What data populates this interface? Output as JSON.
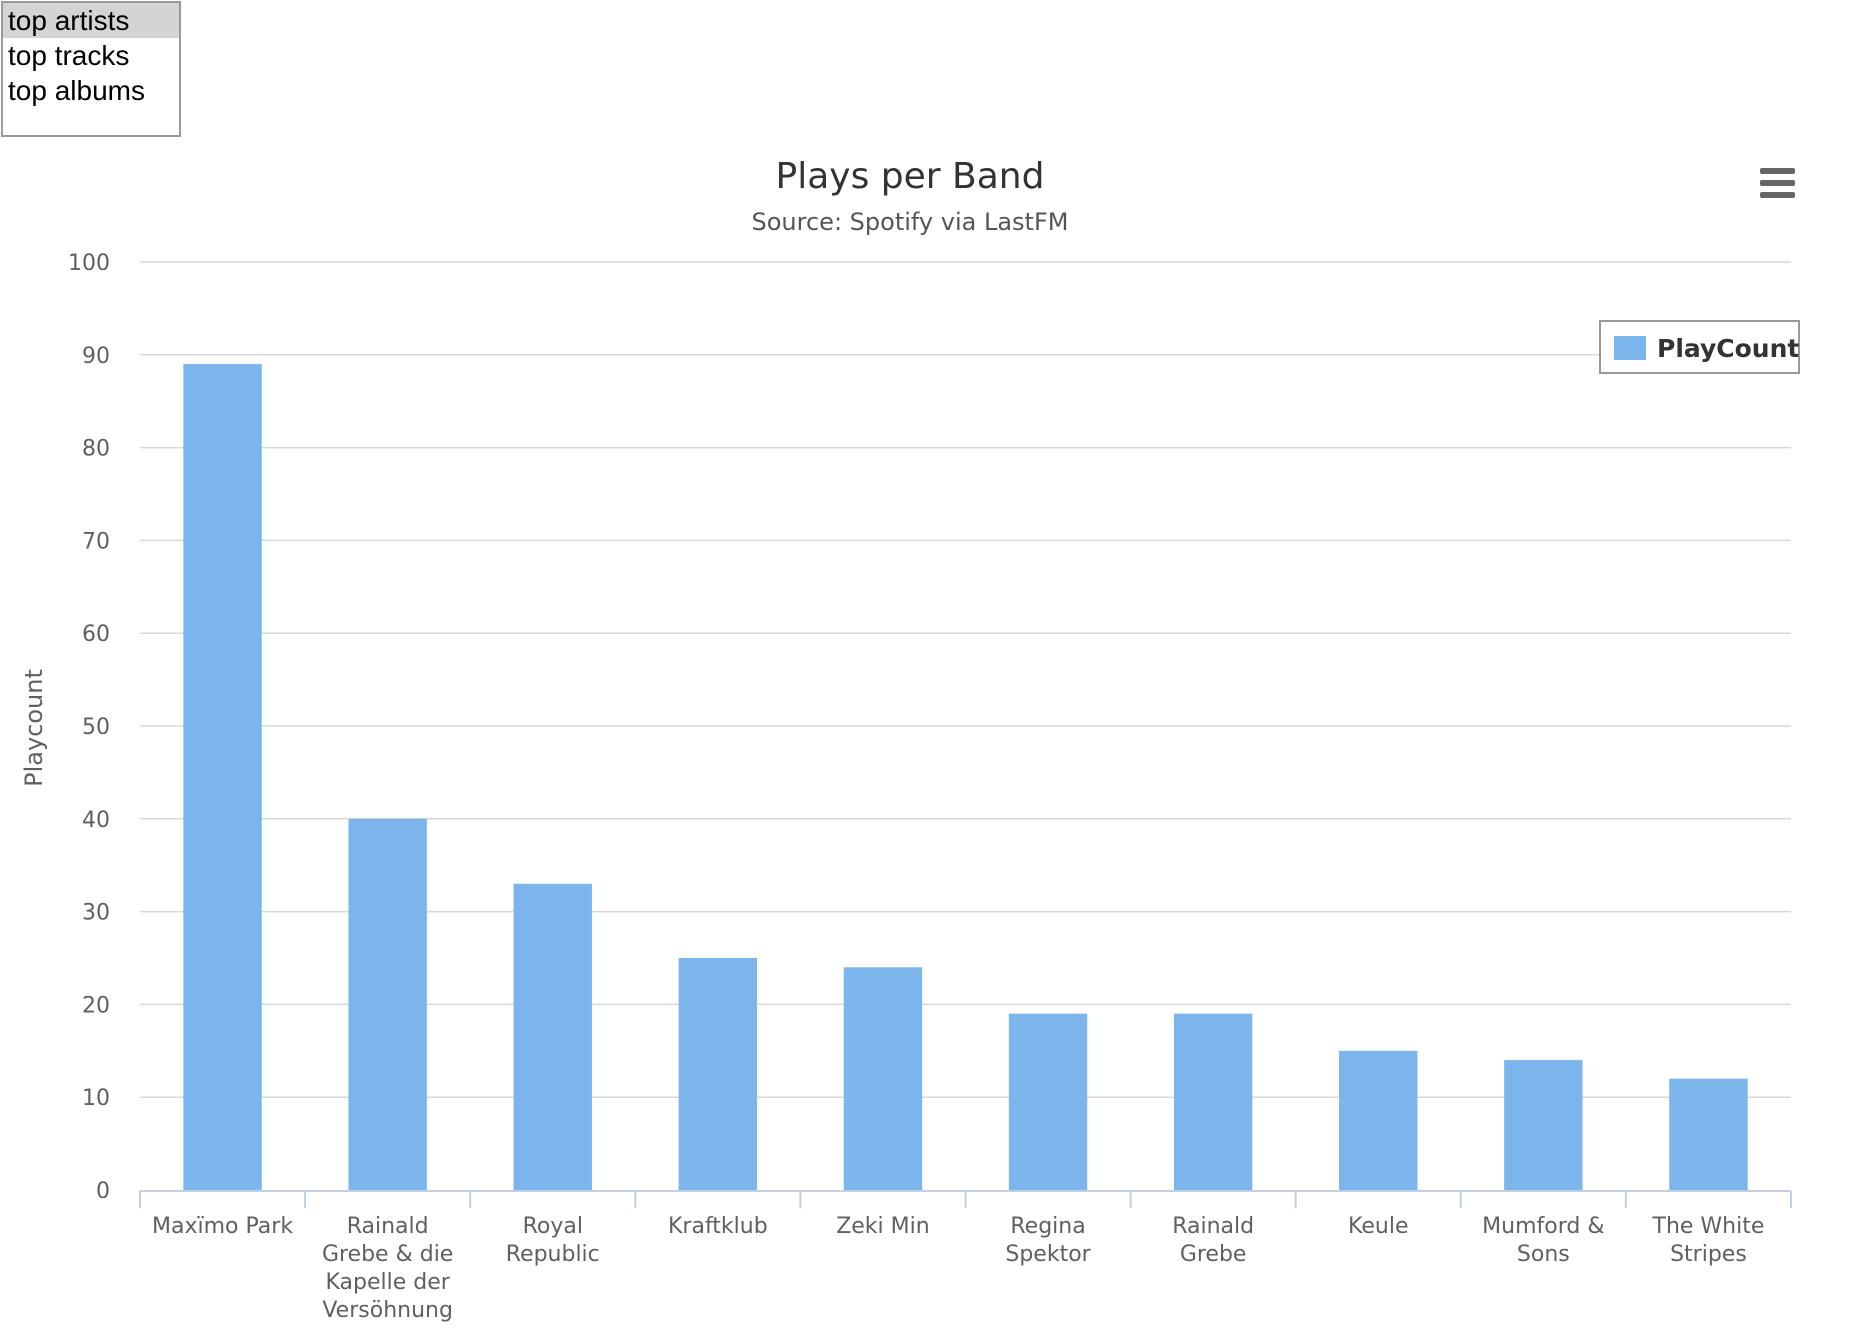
{
  "listbox": {
    "options": [
      "top artists",
      "top tracks",
      "top albums"
    ],
    "selected_index": 0
  },
  "chart_data": {
    "type": "bar",
    "title": "Plays per Band",
    "subtitle": "Source: Spotify via LastFM",
    "ylabel": "Playcount",
    "xlabel": "",
    "ylim": [
      0,
      100
    ],
    "ytick_labels": [
      "0",
      "10",
      "20",
      "30",
      "40",
      "50",
      "60",
      "70",
      "80",
      "90",
      "100"
    ],
    "categories": [
      "Maxïmo Park",
      "Rainald Grebe & die Kapelle der Versöhnung",
      "Royal Republic",
      "Kraftklub",
      "Zeki Min",
      "Regina Spektor",
      "Rainald Grebe",
      "Keule",
      "Mumford & Sons",
      "The White Stripes"
    ],
    "category_label_lines": [
      [
        "Maxïmo Park"
      ],
      [
        "Rainald",
        "Grebe & die",
        "Kapelle der",
        "Versöhnung"
      ],
      [
        "Royal",
        "Republic"
      ],
      [
        "Kraftklub"
      ],
      [
        "Zeki Min"
      ],
      [
        "Regina",
        "Spektor"
      ],
      [
        "Rainald",
        "Grebe"
      ],
      [
        "Keule"
      ],
      [
        "Mumford &",
        "Sons"
      ],
      [
        "The White",
        "Stripes"
      ]
    ],
    "series": [
      {
        "name": "PlayCount",
        "values": [
          89,
          40,
          33,
          25,
          24,
          19,
          19,
          15,
          14,
          12
        ]
      }
    ],
    "grid": true,
    "legend_position": "top-right",
    "colors": {
      "bar": "#7cb5ec",
      "grid": "#d8d8d8",
      "axis": "#c0d0e0",
      "text": "#333333",
      "label": "#606060"
    },
    "menu_icon": "hamburger-menu-icon"
  }
}
